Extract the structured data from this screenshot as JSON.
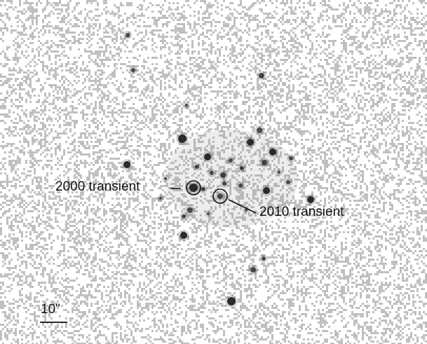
{
  "image": {
    "background_color": "#ffffff",
    "noise_color": "#8c8c8c",
    "star_color": "#1e1e1e"
  },
  "annotations": {
    "transient_2000_label": "2000 transient",
    "transient_2010_label": "2010 transient",
    "scale_bar_label": "10\""
  }
}
